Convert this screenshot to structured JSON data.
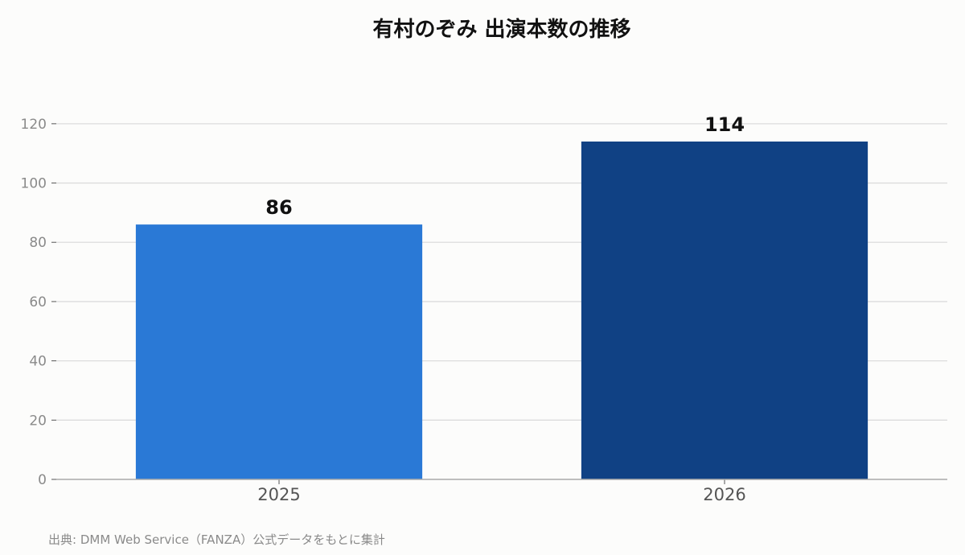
{
  "chart_data": {
    "type": "bar",
    "title": "有村のぞみ 出演本数の推移",
    "xlabel": "",
    "ylabel": "",
    "categories": [
      "2025",
      "2026"
    ],
    "values": [
      86,
      114
    ],
    "bar_colors": [
      "#2a79d6",
      "#104184"
    ],
    "ylim": [
      0,
      130
    ],
    "yticks": [
      0,
      20,
      40,
      60,
      80,
      100,
      120
    ],
    "grid": true,
    "legend": "none"
  },
  "source_note": "出典: DMM Web Service（FANZA）公式データをもとに集計"
}
